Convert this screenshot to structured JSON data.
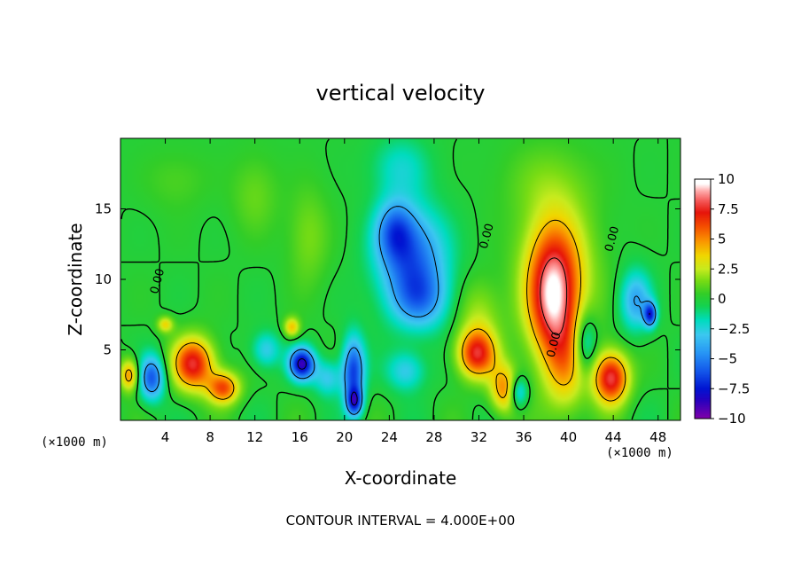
{
  "chart_data": {
    "type": "heatmap",
    "title": "vertical velocity",
    "xlabel": "X-coordinate",
    "ylabel": "Z-coordinate",
    "x_unit": "(×1000 m)",
    "z_unit": "(×1000 m)",
    "xlim": [
      0,
      50
    ],
    "ylim": [
      0,
      20
    ],
    "x_ticks": [
      4,
      8,
      12,
      16,
      20,
      24,
      28,
      32,
      36,
      40,
      44,
      48
    ],
    "y_ticks": [
      5,
      10,
      15
    ],
    "colorbar": {
      "ticks": [
        10,
        7.5,
        5,
        2.5,
        0,
        -2.5,
        -5,
        -7.5,
        -10
      ],
      "tick_labels": [
        "10",
        "7.5",
        "5",
        "2.5",
        "0",
        "−2.5",
        "−5",
        "−7.5",
        "−10"
      ],
      "range": [
        -10,
        10
      ]
    },
    "contour_labels": [
      {
        "text": "0.00",
        "x": 3.6,
        "z": 9.8
      },
      {
        "text": "0.00",
        "x": 33.0,
        "z": 13.0
      },
      {
        "text": "0.00",
        "x": 39.0,
        "z": 5.3
      },
      {
        "text": "0.00",
        "x": 44.2,
        "z": 12.8
      }
    ],
    "features": [
      {
        "x": 38.6,
        "z": 8.5,
        "w": 6.5,
        "sx": 1.5,
        "sz": 3.2
      },
      {
        "x": 39.0,
        "z": 10.5,
        "w": 4.0,
        "sx": 2.3,
        "sz": 3.5
      },
      {
        "x": 39.8,
        "z": 3.5,
        "w": 3.0,
        "sx": 1.3,
        "sz": 2.5
      },
      {
        "x": 31.8,
        "z": 4.7,
        "w": 7.0,
        "sx": 1.2,
        "sz": 1.2
      },
      {
        "x": 34.3,
        "z": 2.2,
        "w": 5.0,
        "sx": 0.9,
        "sz": 1.2
      },
      {
        "x": 43.8,
        "z": 3.0,
        "w": 8.0,
        "sx": 1.1,
        "sz": 1.3
      },
      {
        "x": 6.5,
        "z": 4.0,
        "w": 7.5,
        "sx": 1.3,
        "sz": 1.3
      },
      {
        "x": 9.2,
        "z": 2.3,
        "w": 6.0,
        "sx": 1.0,
        "sz": 0.8
      },
      {
        "x": 0.8,
        "z": 3.2,
        "w": 5.0,
        "sx": 0.6,
        "sz": 0.8
      },
      {
        "x": 15.3,
        "z": 6.6,
        "w": 4.0,
        "sx": 0.5,
        "sz": 0.5
      },
      {
        "x": 4.0,
        "z": 6.8,
        "w": 3.5,
        "sx": 0.5,
        "sz": 0.4
      },
      {
        "x": 32.0,
        "z": 7.5,
        "w": 2.0,
        "sx": 1.4,
        "sz": 1.8
      },
      {
        "x": 26.0,
        "z": 11.5,
        "w": -5.5,
        "sx": 2.2,
        "sz": 2.5
      },
      {
        "x": 24.5,
        "z": 13.5,
        "w": -4.0,
        "sx": 1.2,
        "sz": 1.5
      },
      {
        "x": 26.8,
        "z": 8.5,
        "w": -3.5,
        "sx": 1.8,
        "sz": 1.5
      },
      {
        "x": 16.2,
        "z": 4.0,
        "w": -8.5,
        "sx": 0.8,
        "sz": 0.8
      },
      {
        "x": 20.8,
        "z": 3.5,
        "w": -6.5,
        "sx": 0.7,
        "sz": 1.7
      },
      {
        "x": 20.9,
        "z": 1.3,
        "w": -6.0,
        "sx": 0.5,
        "sz": 0.7
      },
      {
        "x": 2.8,
        "z": 3.0,
        "w": -6.0,
        "sx": 0.8,
        "sz": 1.1
      },
      {
        "x": 46.0,
        "z": 8.5,
        "w": -4.0,
        "sx": 1.0,
        "sz": 1.5
      },
      {
        "x": 47.3,
        "z": 7.5,
        "w": -6.5,
        "sx": 0.4,
        "sz": 0.6
      },
      {
        "x": 35.5,
        "z": 2.0,
        "w": -4.0,
        "sx": 0.6,
        "sz": 0.8
      },
      {
        "x": 41.5,
        "z": 5.5,
        "w": -3.5,
        "sx": 0.7,
        "sz": 1.5
      },
      {
        "x": 13.0,
        "z": 5.0,
        "w": -3.0,
        "sx": 0.9,
        "sz": 0.9
      },
      {
        "x": 25.5,
        "z": 3.5,
        "w": -3.0,
        "sx": 1.2,
        "sz": 1.0
      },
      {
        "x": 18.5,
        "z": 3.0,
        "w": -3.0,
        "sx": 0.9,
        "sz": 0.9
      },
      {
        "x": 16.8,
        "z": 13.0,
        "w": 1.5,
        "sx": 1.3,
        "sz": 2.5
      },
      {
        "x": 12.0,
        "z": 16.0,
        "w": 1.2,
        "sx": 1.5,
        "sz": 2.0
      },
      {
        "x": 38.0,
        "z": 17.0,
        "w": 1.0,
        "sx": 3.0,
        "sz": 2.0
      },
      {
        "x": 25.0,
        "z": 18.0,
        "w": -2.0,
        "sx": 1.8,
        "sz": 1.5
      },
      {
        "x": 5.0,
        "z": 17.0,
        "w": 0.8,
        "sx": 2.0,
        "sz": 1.5
      }
    ],
    "note": "CONTOUR INTERVAL = 4.000E+00"
  }
}
